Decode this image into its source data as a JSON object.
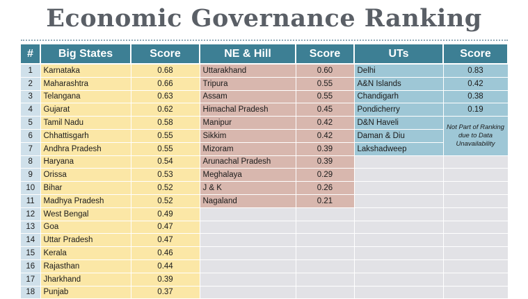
{
  "title": "Economic Governance Ranking",
  "headers": {
    "num": "#",
    "big": "Big States",
    "big_score": "Score",
    "ne": "NE & Hill",
    "ne_score": "Score",
    "ut": "UTs",
    "ut_score": "Score"
  },
  "ut_note": "Not Part of Ranking due to Data Unavailability",
  "rows": [
    {
      "num": "1",
      "big": "Karnataka",
      "big_score": "0.68",
      "ne": "Uttarakhand",
      "ne_score": "0.60",
      "ut": "Delhi",
      "ut_score": "0.83"
    },
    {
      "num": "2",
      "big": "Maharashtra",
      "big_score": "0.66",
      "ne": "Tripura",
      "ne_score": "0.55",
      "ut": "A&N Islands",
      "ut_score": "0.42"
    },
    {
      "num": "3",
      "big": "Telangana",
      "big_score": "0.63",
      "ne": "Assam",
      "ne_score": "0.55",
      "ut": "Chandigarh",
      "ut_score": "0.38"
    },
    {
      "num": "4",
      "big": "Gujarat",
      "big_score": "0.62",
      "ne": "Himachal Pradesh",
      "ne_score": "0.45",
      "ut": "Pondicherry",
      "ut_score": "0.19"
    },
    {
      "num": "5",
      "big": "Tamil Nadu",
      "big_score": "0.58",
      "ne": "Manipur",
      "ne_score": "0.42",
      "ut": "D&N Haveli",
      "ut_score": ""
    },
    {
      "num": "6",
      "big": "Chhattisgarh",
      "big_score": "0.55",
      "ne": "Sikkim",
      "ne_score": "0.42",
      "ut": "Daman & Diu",
      "ut_score": ""
    },
    {
      "num": "7",
      "big": "Andhra Pradesh",
      "big_score": "0.55",
      "ne": "Mizoram",
      "ne_score": "0.39",
      "ut": "Lakshadweep",
      "ut_score": ""
    },
    {
      "num": "8",
      "big": "Haryana",
      "big_score": "0.54",
      "ne": "Arunachal Pradesh",
      "ne_score": "0.39",
      "ut": "",
      "ut_score": ""
    },
    {
      "num": "9",
      "big": "Orissa",
      "big_score": "0.53",
      "ne": "Meghalaya",
      "ne_score": "0.29",
      "ut": "",
      "ut_score": ""
    },
    {
      "num": "10",
      "big": "Bihar",
      "big_score": "0.52",
      "ne": "J & K",
      "ne_score": "0.26",
      "ut": "",
      "ut_score": ""
    },
    {
      "num": "11",
      "big": "Madhya Pradesh",
      "big_score": "0.52",
      "ne": "Nagaland",
      "ne_score": "0.21",
      "ut": "",
      "ut_score": ""
    },
    {
      "num": "12",
      "big": "West Bengal",
      "big_score": "0.49",
      "ne": "",
      "ne_score": "",
      "ut": "",
      "ut_score": ""
    },
    {
      "num": "13",
      "big": "Goa",
      "big_score": "0.47",
      "ne": "",
      "ne_score": "",
      "ut": "",
      "ut_score": ""
    },
    {
      "num": "14",
      "big": "Uttar Pradesh",
      "big_score": "0.47",
      "ne": "",
      "ne_score": "",
      "ut": "",
      "ut_score": ""
    },
    {
      "num": "15",
      "big": "Kerala",
      "big_score": "0.46",
      "ne": "",
      "ne_score": "",
      "ut": "",
      "ut_score": ""
    },
    {
      "num": "16",
      "big": "Rajasthan",
      "big_score": "0.44",
      "ne": "",
      "ne_score": "",
      "ut": "",
      "ut_score": ""
    },
    {
      "num": "17",
      "big": "Jharkhand",
      "big_score": "0.39",
      "ne": "",
      "ne_score": "",
      "ut": "",
      "ut_score": ""
    },
    {
      "num": "18",
      "big": "Punjab",
      "big_score": "0.37",
      "ne": "",
      "ne_score": "",
      "ut": "",
      "ut_score": ""
    }
  ]
}
